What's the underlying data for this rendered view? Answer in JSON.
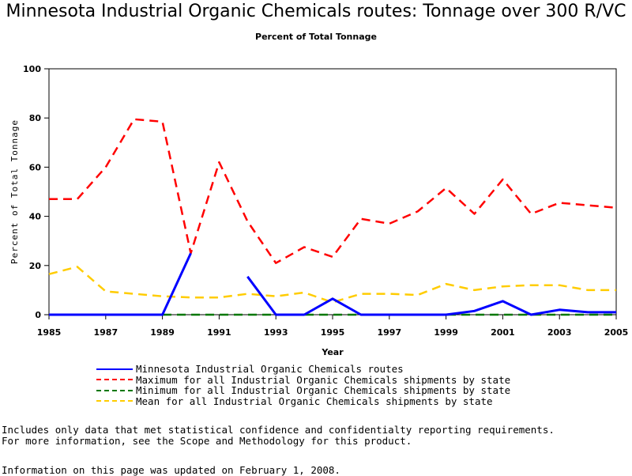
{
  "chart_data": {
    "type": "line",
    "title": "Minnesota Industrial Organic Chemicals routes: Tonnage over 300 R/VC",
    "subtitle": "Percent of Total Tonnage",
    "xlabel": "Year",
    "ylabel": "Percent of Total Tonnage",
    "xlim": [
      1985,
      2005
    ],
    "ylim": [
      0,
      100
    ],
    "xticks": [
      1985,
      1987,
      1989,
      1991,
      1993,
      1995,
      1997,
      1999,
      2001,
      2003,
      2005
    ],
    "yticks": [
      0,
      20,
      40,
      60,
      80,
      100
    ],
    "grid": false,
    "legend_position": "bottom",
    "series": [
      {
        "name": "Minnesota Industrial Organic Chemicals routes",
        "color": "#0000ff",
        "style": "solid",
        "x": [
          1985,
          1986,
          1987,
          1988,
          1989,
          1990,
          1991,
          1992,
          1993,
          1994,
          1995,
          1996,
          1997,
          1998,
          1999,
          2000,
          2001,
          2002,
          2003,
          2004,
          2005
        ],
        "y": [
          0,
          0,
          0,
          0,
          0,
          25,
          null,
          15.5,
          0,
          0,
          6.5,
          0,
          0,
          0,
          0,
          1.5,
          5.5,
          0,
          2,
          1,
          1
        ]
      },
      {
        "name": "Maximum for all Industrial Organic Chemicals shipments by state",
        "color": "#ff0000",
        "style": "dashed",
        "x": [
          1985,
          1986,
          1987,
          1988,
          1989,
          1990,
          1991,
          1992,
          1993,
          1994,
          1995,
          1996,
          1997,
          1998,
          1999,
          2000,
          2001,
          2002,
          2003,
          2004,
          2005
        ],
        "y": [
          47,
          47,
          60,
          79.5,
          78.5,
          25,
          62,
          38,
          21,
          27.5,
          23.5,
          39,
          37,
          42,
          51.5,
          41,
          55,
          41,
          45.5,
          44.5,
          43.5
        ]
      },
      {
        "name": "Minimum for all Industrial Organic Chemicals shipments by state",
        "color": "#007700",
        "style": "dashed",
        "x": [
          1985,
          1986,
          1987,
          1988,
          1989,
          1990,
          1991,
          1992,
          1993,
          1994,
          1995,
          1996,
          1997,
          1998,
          1999,
          2000,
          2001,
          2002,
          2003,
          2004,
          2005
        ],
        "y": [
          0,
          0,
          0,
          0,
          0,
          0,
          0,
          0,
          0,
          0,
          0,
          0,
          0,
          0,
          0,
          0,
          0,
          0,
          0,
          0,
          0
        ]
      },
      {
        "name": "Mean for all Industrial Organic Chemicals shipments by state",
        "color": "#ffcc00",
        "style": "dashed",
        "x": [
          1985,
          1986,
          1987,
          1988,
          1989,
          1990,
          1991,
          1992,
          1993,
          1994,
          1995,
          1996,
          1997,
          1998,
          1999,
          2000,
          2001,
          2002,
          2003,
          2004,
          2005
        ],
        "y": [
          16.5,
          19.5,
          9.5,
          8.5,
          7.5,
          7,
          7,
          8.5,
          7.5,
          9,
          5,
          8.5,
          8.5,
          8,
          12.5,
          10,
          11.5,
          12,
          12,
          10,
          10
        ]
      }
    ]
  },
  "footnotes": {
    "line1": "Includes only data that met statistical confidence and confidentialty reporting requirements.",
    "line2": "For more information, see the Scope and Methodology for this product.",
    "line3": "Information on this page was updated on February 1, 2008."
  }
}
